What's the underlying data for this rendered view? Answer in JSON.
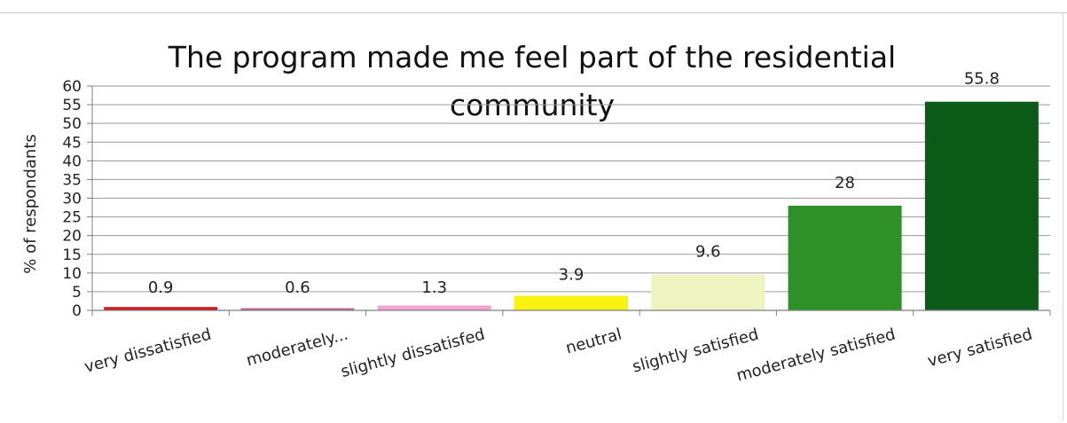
{
  "chart_data": {
    "type": "bar",
    "title": "The program made me feel part of the residential community",
    "ylabel": "% of respondants",
    "xlabel": "",
    "ylim": [
      0,
      60
    ],
    "yticks": [
      0,
      5,
      10,
      15,
      20,
      25,
      30,
      35,
      40,
      45,
      50,
      55,
      60
    ],
    "grid": true,
    "legend": "none",
    "categories": [
      "very dissatisfied",
      "moderately...",
      "slightly dissatisfed",
      "neutral",
      "slightly satisfied",
      "moderately satisfied",
      "very satisfied"
    ],
    "values": [
      0.9,
      0.6,
      1.3,
      3.9,
      9.6,
      28,
      55.8
    ],
    "data_labels": [
      "0.9",
      "0.6",
      "1.3",
      "3.9",
      "9.6",
      "28",
      "55.8"
    ],
    "colors": [
      "#d4161f",
      "#b86a95",
      "#f2a2d2",
      "#f8f20e",
      "#eef4c0",
      "#2e9128",
      "#0b5a17"
    ]
  }
}
